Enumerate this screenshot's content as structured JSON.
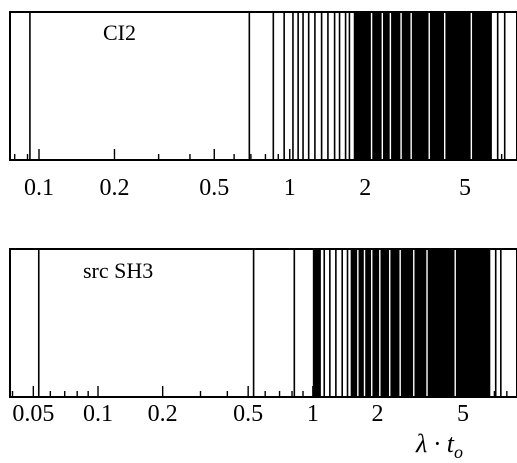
{
  "chart_data": [
    {
      "type": "spectrum",
      "title": "CI2",
      "xscale": "log",
      "xlim": [
        0.075,
        7.8
      ],
      "xticks_major": [
        0.1,
        0.2,
        0.5,
        1,
        2,
        5
      ],
      "xtick_labels": [
        "0.1",
        "0.2",
        "0.5",
        "1",
        "2",
        "5"
      ],
      "xlabel": "",
      "lines": [
        0.092,
        0.69,
        0.86,
        0.95,
        1.03,
        1.08,
        1.13,
        1.19,
        1.26,
        1.34,
        1.42,
        1.51,
        1.58,
        1.67,
        1.73
      ],
      "dense_bands": [
        [
          1.8,
          6.4
        ]
      ],
      "dense_band_gaps": [
        2.12,
        2.34,
        2.52,
        2.78,
        3.05,
        3.6,
        4.15,
        5.3
      ],
      "lines_above_band": [
        6.75,
        7.2
      ]
    },
    {
      "type": "spectrum",
      "title": "src SH3",
      "xscale": "log",
      "xlim": [
        0.04,
        7.8
      ],
      "xticks_major": [
        0.05,
        0.1,
        0.2,
        0.5,
        1,
        2,
        5
      ],
      "xtick_labels": [
        "0.05",
        "0.1",
        "0.2",
        "0.5",
        "1",
        "2",
        "5"
      ],
      "xlabel": "λ · t",
      "xlabel_subscript": "o",
      "lines": [
        0.053,
        0.53,
        0.82,
        1.13,
        1.2,
        1.28,
        1.37,
        1.45
      ],
      "dense_bands": [
        [
          1.0,
          1.09
        ],
        [
          1.5,
          6.7
        ]
      ],
      "dense_band_gaps": [
        1.62,
        1.74,
        1.88,
        2.05,
        2.28,
        2.55,
        2.95,
        3.4,
        4.6
      ],
      "lines_above_band": [
        7.1,
        7.5
      ]
    }
  ]
}
